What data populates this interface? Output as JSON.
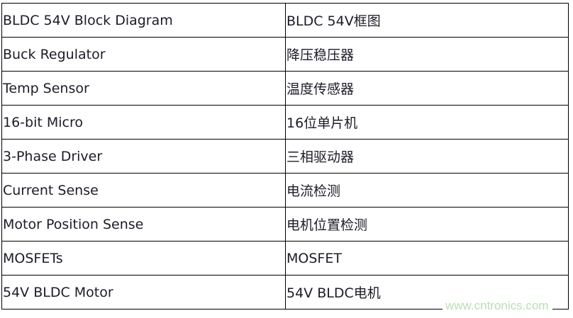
{
  "rows": [
    {
      "en": "BLDC 54V Block Diagram",
      "zh": "BLDC 54V框图"
    },
    {
      "en": "Buck Regulator",
      "zh": "降压稳压器"
    },
    {
      "en": "Temp Sensor",
      "zh": "温度传感器"
    },
    {
      "en": "16-bit Micro",
      "zh": "16位单片机"
    },
    {
      "en": "3-Phase Driver",
      "zh": "三相驱动器"
    },
    {
      "en": "Current Sense",
      "zh": "电流检测"
    },
    {
      "en": "Motor Position Sense",
      "zh": "电机位置检测"
    },
    {
      "en": "MOSFETs",
      "zh": "MOSFET"
    },
    {
      "en": "54V BLDC Motor",
      "zh": "54V BLDC电机"
    }
  ],
  "watermark": "www.cntronics.com"
}
